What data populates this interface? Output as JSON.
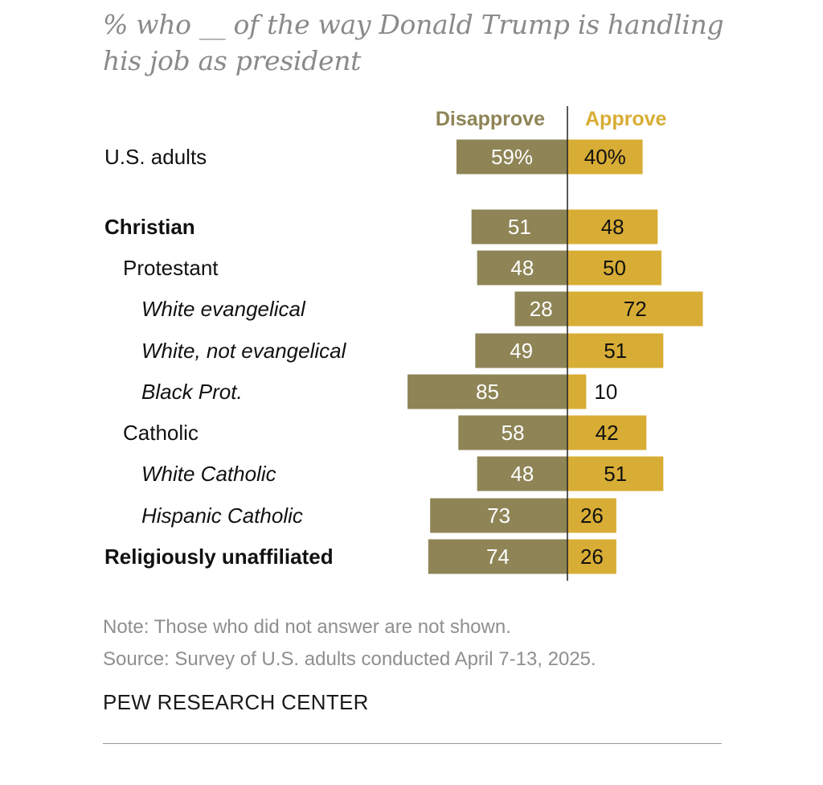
{
  "chart_data": {
    "type": "bar",
    "subtype": "diverging-horizontal",
    "title": "% who __ of the way Donald Trump is handling his job as president",
    "unit": "%",
    "series": [
      {
        "name": "Disapprove",
        "color": "#8e8456"
      },
      {
        "name": "Approve",
        "color": "#d8ad35"
      }
    ],
    "rows": [
      {
        "label": "U.S. adults",
        "style": "normal",
        "indent": 0,
        "disapprove": 59,
        "approve": 40,
        "disapprove_label": "59%",
        "approve_label": "40%"
      },
      {
        "label": "Christian",
        "style": "bold",
        "indent": 0,
        "disapprove": 51,
        "approve": 48,
        "disapprove_label": "51",
        "approve_label": "48"
      },
      {
        "label": "Protestant",
        "style": "normal",
        "indent": 1,
        "disapprove": 48,
        "approve": 50,
        "disapprove_label": "48",
        "approve_label": "50"
      },
      {
        "label": "White evangelical",
        "style": "italic",
        "indent": 2,
        "disapprove": 28,
        "approve": 72,
        "disapprove_label": "28",
        "approve_label": "72"
      },
      {
        "label": "White, not evangelical",
        "style": "italic",
        "indent": 2,
        "disapprove": 49,
        "approve": 51,
        "disapprove_label": "49",
        "approve_label": "51"
      },
      {
        "label": "Black Prot.",
        "style": "italic",
        "indent": 2,
        "disapprove": 85,
        "approve": 10,
        "disapprove_label": "85",
        "approve_label": "10"
      },
      {
        "label": "Catholic",
        "style": "normal",
        "indent": 1,
        "disapprove": 58,
        "approve": 42,
        "disapprove_label": "58",
        "approve_label": "42"
      },
      {
        "label": "White Catholic",
        "style": "italic",
        "indent": 2,
        "disapprove": 48,
        "approve": 51,
        "disapprove_label": "48",
        "approve_label": "51"
      },
      {
        "label": "Hispanic Catholic",
        "style": "italic",
        "indent": 2,
        "disapprove": 73,
        "approve": 26,
        "disapprove_label": "73",
        "approve_label": "26"
      },
      {
        "label": "Religiously unaffiliated",
        "style": "bold",
        "indent": 0,
        "disapprove": 74,
        "approve": 26,
        "disapprove_label": "74",
        "approve_label": "26"
      }
    ],
    "note": "Note: Those who did not answer are not shown.",
    "source": "Source: Survey of U.S. adults conducted April 7-13, 2025."
  },
  "brand": "PEW RESEARCH CENTER"
}
